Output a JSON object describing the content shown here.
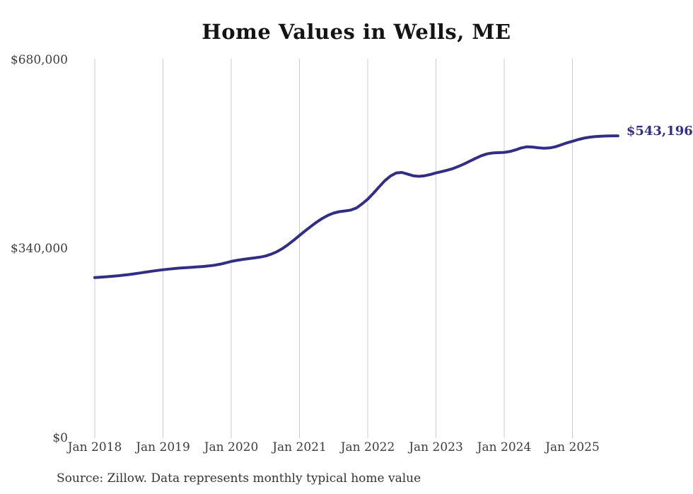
{
  "page": {
    "title": "Home Values in Wells, ME",
    "source_note": "Source: Zillow. Data represents monthly typical home value"
  },
  "chart_data": {
    "type": "line",
    "title": "Home Values in Wells, ME",
    "xlabel": "",
    "ylabel": "",
    "unit": "USD",
    "frequency": "monthly",
    "start_month": "2018-01",
    "end_month": "2025-09",
    "values": [
      288600,
      289300,
      290000,
      290800,
      291700,
      292800,
      294000,
      295400,
      296900,
      298400,
      299900,
      301300,
      302600,
      303700,
      304700,
      305600,
      306400,
      307100,
      307800,
      308500,
      309400,
      310700,
      312500,
      314900,
      317600,
      319500,
      321100,
      322500,
      323800,
      325200,
      327300,
      330500,
      334900,
      340700,
      347800,
      355800,
      364200,
      372500,
      380500,
      388000,
      394800,
      400400,
      404500,
      407000,
      408300,
      409800,
      413500,
      421000,
      429500,
      440000,
      451500,
      462500,
      471000,
      476500,
      477500,
      474500,
      471500,
      470500,
      471500,
      473800,
      476600,
      479000,
      481500,
      484500,
      488500,
      493000,
      498000,
      503000,
      507500,
      510800,
      512500,
      513000,
      513500,
      515000,
      518000,
      521500,
      523500,
      523000,
      521800,
      521000,
      521500,
      523500,
      527000,
      530500,
      533500,
      536500,
      539000,
      540800,
      541800,
      542500,
      543000,
      543100,
      543196
    ],
    "x_tick_labels": [
      "Jan 2018",
      "Jan 2019",
      "Jan 2020",
      "Jan 2021",
      "Jan 2022",
      "Jan 2023",
      "Jan 2024",
      "Jan 2025"
    ],
    "y_ticks": [
      {
        "label": "$680,000",
        "value": 680000
      },
      {
        "label": "$340,000",
        "value": 340000
      },
      {
        "label": "$0",
        "value": 0
      }
    ],
    "ylim": [
      0,
      680000
    ],
    "grid": "vertical",
    "legend": "none",
    "line_color": "#322e84",
    "grid_color": "#cccccc",
    "end_label": "$543,196",
    "end_value": 543196
  }
}
